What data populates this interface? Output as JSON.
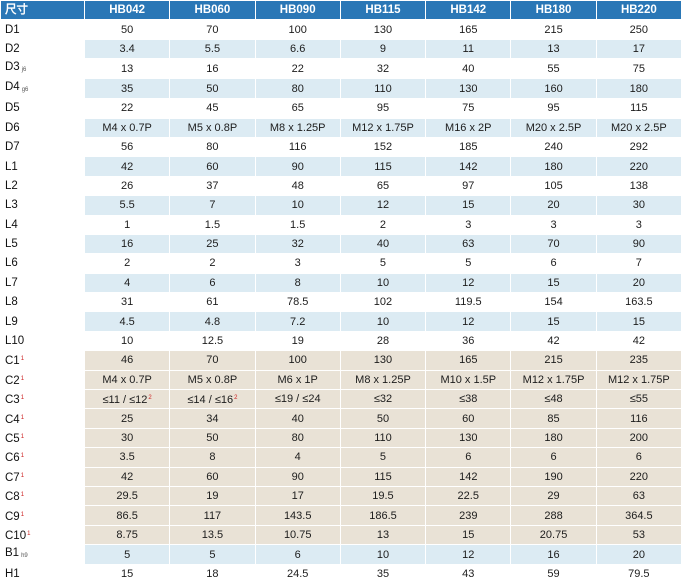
{
  "header": [
    "尺寸",
    "HB042",
    "HB060",
    "HB090",
    "HB115",
    "HB142",
    "HB180",
    "HB220"
  ],
  "rows": [
    {
      "label": "D1",
      "sub": "",
      "mark": "",
      "group": "d",
      "cells": [
        "50",
        "70",
        "100",
        "130",
        "165",
        "215",
        "250"
      ]
    },
    {
      "label": "D2",
      "sub": "",
      "mark": "",
      "group": "d",
      "cells": [
        "3.4",
        "5.5",
        "6.6",
        "9",
        "11",
        "13",
        "17"
      ]
    },
    {
      "label": "D3",
      "sub": "j6",
      "mark": "",
      "group": "d",
      "cells": [
        "13",
        "16",
        "22",
        "32",
        "40",
        "55",
        "75"
      ]
    },
    {
      "label": "D4",
      "sub": "g6",
      "mark": "",
      "group": "d",
      "cells": [
        "35",
        "50",
        "80",
        "110",
        "130",
        "160",
        "180"
      ]
    },
    {
      "label": "D5",
      "sub": "",
      "mark": "",
      "group": "d",
      "cells": [
        "22",
        "45",
        "65",
        "95",
        "75",
        "95",
        "115"
      ]
    },
    {
      "label": "D6",
      "sub": "",
      "mark": "",
      "group": "d",
      "cells": [
        "M4 x 0.7P",
        "M5 x 0.8P",
        "M8 x 1.25P",
        "M12 x 1.75P",
        "M16 x 2P",
        "M20 x 2.5P",
        "M20 x 2.5P"
      ]
    },
    {
      "label": "D7",
      "sub": "",
      "mark": "",
      "group": "d",
      "cells": [
        "56",
        "80",
        "116",
        "152",
        "185",
        "240",
        "292"
      ]
    },
    {
      "label": "L1",
      "sub": "",
      "mark": "",
      "group": "d",
      "cells": [
        "42",
        "60",
        "90",
        "115",
        "142",
        "180",
        "220"
      ]
    },
    {
      "label": "L2",
      "sub": "",
      "mark": "",
      "group": "d",
      "cells": [
        "26",
        "37",
        "48",
        "65",
        "97",
        "105",
        "138"
      ]
    },
    {
      "label": "L3",
      "sub": "",
      "mark": "",
      "group": "d",
      "cells": [
        "5.5",
        "7",
        "10",
        "12",
        "15",
        "20",
        "30"
      ]
    },
    {
      "label": "L4",
      "sub": "",
      "mark": "",
      "group": "d",
      "cells": [
        "1",
        "1.5",
        "1.5",
        "2",
        "3",
        "3",
        "3"
      ]
    },
    {
      "label": "L5",
      "sub": "",
      "mark": "",
      "group": "d",
      "cells": [
        "16",
        "25",
        "32",
        "40",
        "63",
        "70",
        "90"
      ]
    },
    {
      "label": "L6",
      "sub": "",
      "mark": "",
      "group": "d",
      "cells": [
        "2",
        "2",
        "3",
        "5",
        "5",
        "6",
        "7"
      ]
    },
    {
      "label": "L7",
      "sub": "",
      "mark": "",
      "group": "d",
      "cells": [
        "4",
        "6",
        "8",
        "10",
        "12",
        "15",
        "20"
      ]
    },
    {
      "label": "L8",
      "sub": "",
      "mark": "",
      "group": "d",
      "cells": [
        "31",
        "61",
        "78.5",
        "102",
        "119.5",
        "154",
        "163.5"
      ]
    },
    {
      "label": "L9",
      "sub": "",
      "mark": "",
      "group": "d",
      "cells": [
        "4.5",
        "4.8",
        "7.2",
        "10",
        "12",
        "15",
        "15"
      ]
    },
    {
      "label": "L10",
      "sub": "",
      "mark": "",
      "group": "d",
      "cells": [
        "10",
        "12.5",
        "19",
        "28",
        "36",
        "42",
        "42"
      ]
    },
    {
      "label": "C1",
      "sub": "",
      "mark": "1",
      "group": "c",
      "cells": [
        "46",
        "70",
        "100",
        "130",
        "165",
        "215",
        "235"
      ]
    },
    {
      "label": "C2",
      "sub": "",
      "mark": "1",
      "group": "c",
      "cells": [
        "M4 x 0.7P",
        "M5 x 0.8P",
        "M6 x 1P",
        "M8 x 1.25P",
        "M10 x 1.5P",
        "M12 x 1.75P",
        "M12 x 1.75P"
      ]
    },
    {
      "label": "C3",
      "sub": "",
      "mark": "1",
      "group": "c",
      "cells": [
        "≤11 / ≤12",
        "≤14 / ≤16",
        "≤19 / ≤24",
        "≤32",
        "≤38",
        "≤48",
        "≤55"
      ],
      "cell_marks": [
        "2",
        "2",
        "",
        "",
        "",
        "",
        ""
      ]
    },
    {
      "label": "C4",
      "sub": "",
      "mark": "1",
      "group": "c",
      "cells": [
        "25",
        "34",
        "40",
        "50",
        "60",
        "85",
        "116"
      ]
    },
    {
      "label": "C5",
      "sub": "",
      "mark": "1",
      "group": "c",
      "cells": [
        "30",
        "50",
        "80",
        "110",
        "130",
        "180",
        "200"
      ]
    },
    {
      "label": "C6",
      "sub": "",
      "mark": "1",
      "group": "c",
      "cells": [
        "3.5",
        "8",
        "4",
        "5",
        "6",
        "6",
        "6"
      ]
    },
    {
      "label": "C7",
      "sub": "",
      "mark": "1",
      "group": "c",
      "cells": [
        "42",
        "60",
        "90",
        "115",
        "142",
        "190",
        "220"
      ]
    },
    {
      "label": "C8",
      "sub": "",
      "mark": "1",
      "group": "c",
      "cells": [
        "29.5",
        "19",
        "17",
        "19.5",
        "22.5",
        "29",
        "63"
      ]
    },
    {
      "label": "C9",
      "sub": "",
      "mark": "1",
      "group": "c",
      "cells": [
        "86.5",
        "117",
        "143.5",
        "186.5",
        "239",
        "288",
        "364.5"
      ]
    },
    {
      "label": "C10",
      "sub": "",
      "mark": "1",
      "group": "c",
      "cells": [
        "8.75",
        "13.5",
        "10.75",
        "13",
        "15",
        "20.75",
        "53"
      ]
    },
    {
      "label": "B1",
      "sub": "h9",
      "mark": "",
      "group": "d",
      "cells": [
        "5",
        "5",
        "6",
        "10",
        "12",
        "16",
        "20"
      ]
    },
    {
      "label": "H1",
      "sub": "",
      "mark": "",
      "group": "d",
      "cells": [
        "15",
        "18",
        "24.5",
        "35",
        "43",
        "59",
        "79.5"
      ]
    }
  ]
}
